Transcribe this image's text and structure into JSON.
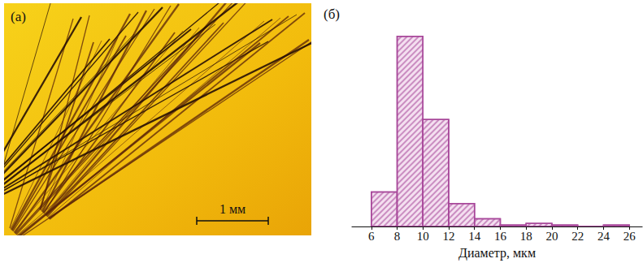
{
  "photo": {
    "label": "(а)",
    "scale_bar": "1 мм"
  },
  "chart_data": {
    "type": "histogram",
    "title": "(б)",
    "x_label": "Диаметр, мкм",
    "bins": [
      6,
      8,
      10,
      12,
      14,
      16,
      18,
      20,
      22,
      24,
      26
    ],
    "values": [
      45,
      247,
      139,
      30,
      10,
      2,
      4,
      2,
      0,
      2
    ],
    "color": "#a8489a",
    "xlim": [
      4.5,
      27
    ],
    "xticks": [
      6,
      8,
      10,
      12,
      14,
      16,
      18,
      20,
      22,
      24,
      26
    ],
    "ylim": [
      0,
      252
    ],
    "tick_labels": "x",
    "grid": false
  }
}
